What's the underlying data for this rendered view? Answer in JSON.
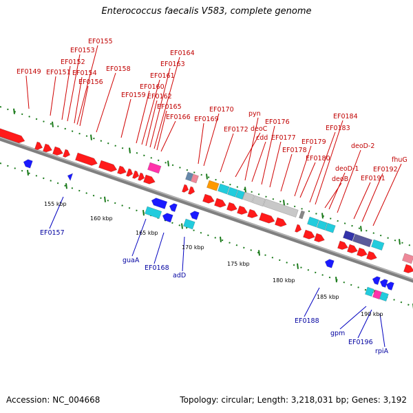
{
  "title": "Enterococcus faecalis V583, complete genome",
  "footer": {
    "accession": "Accession: NC_004668",
    "topology": "Topology: circular; Length: 3,218,031 bp; Genes: 3,192"
  },
  "colors": {
    "forward_gene": "#ff1a1a",
    "reverse_gene": "#1a1aff",
    "forward_label": "#c00000",
    "reverse_label": "#0000a0",
    "backbone": "#808080",
    "ticks": "#1a7a1a",
    "cyan": "#22ccdd",
    "magenta": "#ff33aa",
    "grey": "#c8c8c8",
    "orange": "#ff9900",
    "navy": "#5a5a9a"
  },
  "scale_labels": [
    "155 kbp",
    "160 kbp",
    "165 kbp",
    "170 kbp",
    "175 kbp",
    "180 kbp",
    "185 kbp",
    "190 kbp"
  ],
  "forward_labels": [
    "EF0149",
    "EF0151",
    "EF0152",
    "EF0153",
    "EF0154",
    "EF0155",
    "EF0156",
    "EF0158",
    "EF0159",
    "EF0160",
    "EF0161",
    "EF0162",
    "EF0163",
    "EF0164",
    "EF0165",
    "EF0166",
    "EF0169",
    "EF0170",
    "EF0172",
    "deoC",
    "pyn",
    "cdd",
    "EF0176",
    "EF0177",
    "EF0178",
    "EF0179",
    "EF0180",
    "EF0183",
    "EF0184",
    "deoB",
    "deoD-1",
    "deoD-2",
    "EF0191",
    "EF0192",
    "fhuG"
  ],
  "reverse_labels": [
    "EF0157",
    "guaA",
    "EF0168",
    "adD",
    "EF0188",
    "gpm",
    "EF0196",
    "rpiA"
  ]
}
